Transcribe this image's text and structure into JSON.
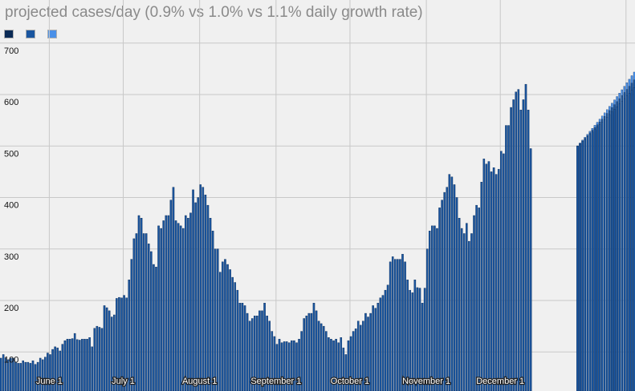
{
  "chart_data": {
    "type": "bar",
    "title": "projected cases/day (0.9% vs 1.0% vs 1.1% daily growth rate)",
    "xlabel": "",
    "ylabel": "",
    "ylim": [
      70,
      760
    ],
    "yticks": [
      100,
      200,
      300,
      400,
      500,
      600,
      700
    ],
    "xticks": [
      {
        "label": "June 1",
        "day": 20
      },
      {
        "label": "July 1",
        "day": 50
      },
      {
        "label": "August 1",
        "day": 81
      },
      {
        "label": "September 1",
        "day": 112
      },
      {
        "label": "October 1",
        "day": 142
      },
      {
        "label": "November 1",
        "day": 173
      },
      {
        "label": "December 1",
        "day": 203
      }
    ],
    "grid": true,
    "legend_position": "top-left",
    "colors": {
      "series_0_9": "#0a2a55",
      "series_1_0": "#1a56a0",
      "series_1_1": "#4a90e8",
      "grid": "#c8c8c8",
      "background": "#f0f0f0"
    },
    "projection_start_day": 234,
    "projection_days": 24,
    "projection_growth_rates": [
      0.009,
      0.01,
      0.011
    ],
    "series": [
      {
        "name": "",
        "values": [
          88,
          95,
          88,
          85,
          88,
          88,
          80,
          78,
          78,
          83,
          80,
          80,
          78,
          83,
          76,
          80,
          88,
          85,
          90,
          98,
          95,
          105,
          110,
          108,
          102,
          115,
          122,
          125,
          125,
          126,
          136,
          124,
          123,
          125,
          125,
          125,
          128,
          110,
          146,
          150,
          148,
          146,
          190,
          186,
          180,
          168,
          172,
          204,
          206,
          205,
          210,
          205,
          240,
          280,
          320,
          330,
          365,
          360,
          330,
          330,
          310,
          295,
          270,
          265,
          345,
          340,
          355,
          365,
          365,
          395,
          420,
          355,
          350,
          345,
          340,
          365,
          360,
          370,
          415,
          390,
          400,
          425,
          420,
          405,
          385,
          360,
          335,
          300,
          300,
          255,
          275,
          280,
          270,
          260,
          245,
          235,
          220,
          195,
          195,
          190,
          175,
          160,
          165,
          170,
          170,
          180,
          180,
          195,
          170,
          160,
          140,
          130,
          115,
          125,
          118,
          120,
          120,
          118,
          122,
          122,
          118,
          125,
          140,
          165,
          170,
          175,
          175,
          195,
          180,
          160,
          155,
          150,
          140,
          128,
          125,
          122,
          125,
          118,
          128,
          108,
          95,
          122,
          130,
          140,
          145,
          160,
          152,
          160,
          175,
          168,
          175,
          190,
          185,
          195,
          205,
          210,
          220,
          230,
          275,
          285,
          280,
          280,
          280,
          290,
          275,
          240,
          220,
          215,
          240,
          225,
          224,
          195,
          224,
          300,
          335,
          345,
          345,
          340,
          380,
          395,
          410,
          420,
          445,
          440,
          425,
          400,
          360,
          340,
          330,
          350,
          315,
          330,
          365,
          385,
          380,
          430,
          475,
          465,
          470,
          450,
          458,
          445,
          455,
          490,
          485,
          540,
          540,
          575,
          590,
          605,
          610,
          570,
          590,
          620,
          570,
          495
        ]
      }
    ],
    "legend": [
      {
        "name": "",
        "color": "#0a2a55"
      },
      {
        "name": "",
        "color": "#1a56a0"
      },
      {
        "name": "",
        "color": "#4a90e8"
      }
    ]
  }
}
